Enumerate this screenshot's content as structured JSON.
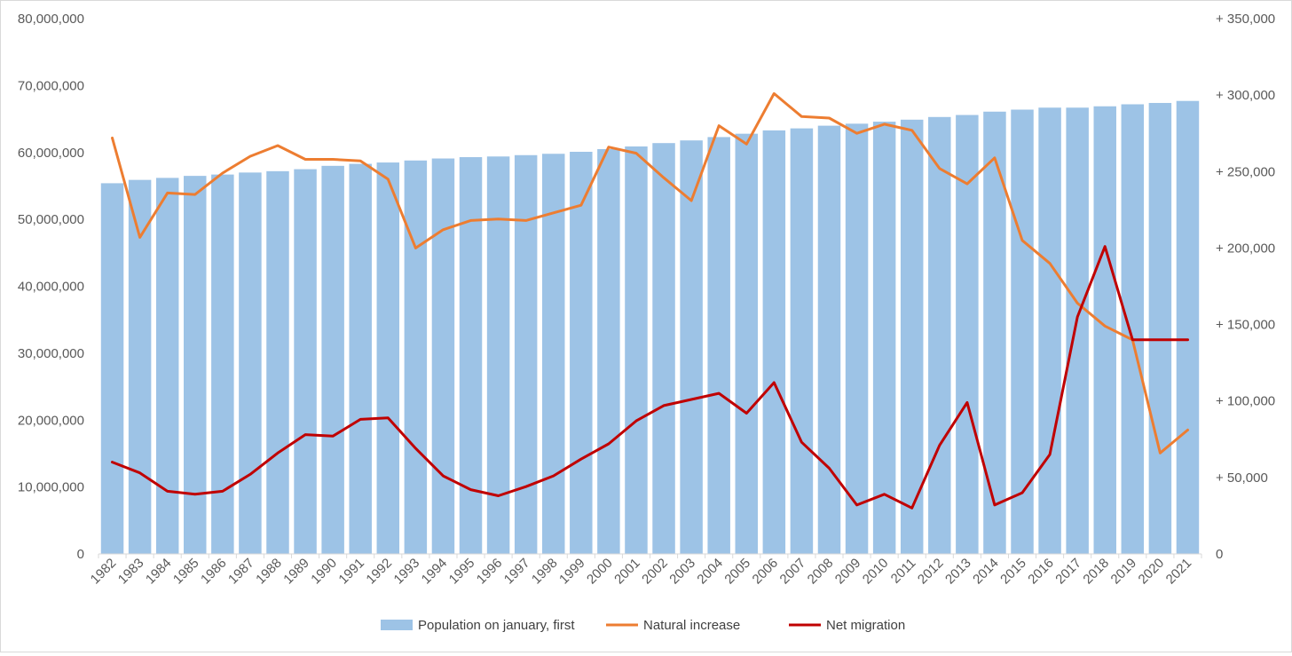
{
  "chart_data": {
    "type": "bar",
    "title": "",
    "xlabel": "",
    "ylabel": "",
    "y2label": "",
    "categories": [
      "1982",
      "1983",
      "1984",
      "1985",
      "1986",
      "1987",
      "1988",
      "1989",
      "1990",
      "1991",
      "1992",
      "1993",
      "1994",
      "1995",
      "1996",
      "1997",
      "1998",
      "1999",
      "2000",
      "2001",
      "2002",
      "2003",
      "2004",
      "2005",
      "2006",
      "2007",
      "2008",
      "2009",
      "2010",
      "2011",
      "2012",
      "2013",
      "2014",
      "2015",
      "2016",
      "2017",
      "2018",
      "2019",
      "2020",
      "2021"
    ],
    "ylim": [
      0,
      80000000
    ],
    "y_ticks": [
      "0",
      "10,000,000",
      "20,000,000",
      "30,000,000",
      "40,000,000",
      "50,000,000",
      "60,000,000",
      "70,000,000",
      "80,000,000"
    ],
    "y2lim": [
      0,
      350000
    ],
    "y2_ticks": [
      "0",
      "+ 50,000",
      "+ 100,000",
      "+ 150,000",
      "+ 200,000",
      "+ 250,000",
      "+ 300,000",
      "+ 350,000"
    ],
    "grid": false,
    "legend_position": "bottom",
    "series": [
      {
        "name": "Population on january, first",
        "kind": "bar",
        "axis": "left",
        "color": "#9dc3e6",
        "values": [
          55400000,
          55900000,
          56200000,
          56500000,
          56700000,
          57000000,
          57200000,
          57500000,
          58000000,
          58300000,
          58500000,
          58800000,
          59100000,
          59300000,
          59400000,
          59600000,
          59800000,
          60100000,
          60500000,
          60900000,
          61400000,
          61800000,
          62300000,
          62800000,
          63300000,
          63600000,
          64000000,
          64300000,
          64600000,
          64900000,
          65300000,
          65600000,
          66100000,
          66400000,
          66700000,
          66700000,
          66900000,
          67200000,
          67400000,
          67700000
        ]
      },
      {
        "name": "Natural increase",
        "kind": "line",
        "axis": "right",
        "color": "#ed7d31",
        "values": [
          272000,
          207000,
          236000,
          235000,
          249000,
          260000,
          267000,
          258000,
          258000,
          257000,
          245000,
          200000,
          212000,
          218000,
          219000,
          218000,
          223000,
          228000,
          266000,
          262000,
          246000,
          231000,
          280000,
          268000,
          301000,
          286000,
          285000,
          275000,
          281000,
          277000,
          252000,
          242000,
          259000,
          205000,
          190000,
          164000,
          149000,
          140000,
          66000,
          81000
        ]
      },
      {
        "name": "Net migration",
        "kind": "line",
        "axis": "right",
        "color": "#c00000",
        "values": [
          60000,
          53000,
          41000,
          39000,
          41000,
          52000,
          66000,
          78000,
          77000,
          88000,
          89000,
          69000,
          51000,
          42000,
          38000,
          44000,
          51000,
          62000,
          72000,
          87000,
          97000,
          101000,
          105000,
          92000,
          112000,
          73000,
          56000,
          32000,
          39000,
          30000,
          71000,
          99000,
          32000,
          40000,
          65000,
          155000,
          201000,
          140000,
          140000,
          140000
        ]
      }
    ]
  }
}
